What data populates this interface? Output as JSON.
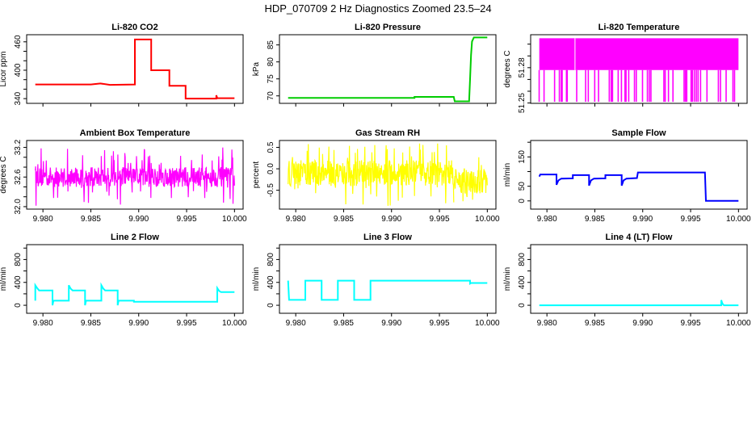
{
  "page_title": "HDP_070709  2 Hz Diagnostics Zoomed 23.5–24",
  "chart_data": [
    {
      "type": "line",
      "title": "Li-820 CO2",
      "ylabel": "Licor ppm",
      "color": "#ff0000",
      "xlim": [
        9.9783,
        10.0009
      ],
      "ylim": [
        330,
        475
      ],
      "xticks": [
        9.98,
        9.985,
        9.99,
        9.995,
        10.0
      ],
      "xtick_labels": [],
      "yticks": [
        340,
        360,
        380,
        400,
        420,
        440,
        460
      ],
      "ytick_labels": [
        "340",
        "",
        "",
        "400",
        "",
        "",
        "460"
      ],
      "points": [
        [
          9.9792,
          370
        ],
        [
          9.985,
          370
        ],
        [
          9.986,
          372
        ],
        [
          9.987,
          369
        ],
        [
          9.9896,
          370
        ],
        [
          9.9896,
          465
        ],
        [
          9.9913,
          465
        ],
        [
          9.9913,
          400
        ],
        [
          9.9932,
          400
        ],
        [
          9.9932,
          367
        ],
        [
          9.9949,
          367
        ],
        [
          9.9949,
          340
        ],
        [
          9.9981,
          340
        ],
        [
          9.9981,
          347
        ],
        [
          9.9982,
          341
        ],
        [
          10.0,
          341
        ]
      ]
    },
    {
      "type": "line",
      "title": "Li-820 Pressure",
      "ylabel": "kPa",
      "color": "#00cc00",
      "xlim": [
        9.9783,
        10.0009
      ],
      "ylim": [
        67.8,
        88.0
      ],
      "xticks": [
        9.98,
        9.985,
        9.99,
        9.995,
        10.0
      ],
      "xtick_labels": [],
      "yticks": [
        70,
        75,
        80,
        85
      ],
      "ytick_labels": [
        "70",
        "75",
        "80",
        "85"
      ],
      "points": [
        [
          9.9792,
          69.4
        ],
        [
          9.9924,
          69.4
        ],
        [
          9.9924,
          69.7
        ],
        [
          9.9965,
          69.7
        ],
        [
          9.9966,
          68.4
        ],
        [
          9.9981,
          68.4
        ],
        [
          9.9982,
          75
        ],
        [
          9.9983,
          82
        ],
        [
          9.9984,
          86
        ],
        [
          9.9986,
          87.2
        ],
        [
          10.0,
          87.2
        ]
      ]
    },
    {
      "type": "line",
      "title": "Li-820 Temperature",
      "ylabel": "degrees C",
      "color": "#ff00ff",
      "xlim": [
        9.9783,
        10.0009
      ],
      "ylim": [
        51.2497,
        51.308
      ],
      "xticks": [
        9.98,
        9.985,
        9.99,
        9.995,
        10.0
      ],
      "xtick_labels": [],
      "yticks": [
        51.25,
        51.26,
        51.27,
        51.28,
        51.29,
        51.3
      ],
      "ytick_labels": [
        "51.25",
        "",
        "",
        "51.28",
        "",
        ""
      ],
      "levels": {
        "high": 51.305,
        "mid": 51.278,
        "low": 51.251
      },
      "x_range": [
        9.9792,
        10.0
      ],
      "drops_to_low": [
        9.97918,
        9.97969,
        9.98079,
        9.98129,
        9.98149,
        9.98158,
        9.98203,
        9.98211,
        9.9831,
        9.98403,
        9.98431,
        9.98498,
        9.98538,
        9.9865,
        9.9867,
        9.98684,
        9.98743,
        9.98777,
        9.98814,
        9.98825,
        9.98853,
        9.98913,
        9.98932,
        9.98997,
        9.99048,
        9.99068,
        9.99085,
        9.9922,
        9.99234,
        9.99268,
        9.99315,
        9.99431,
        9.99445,
        9.99459,
        9.99504,
        9.99518,
        9.99538,
        9.99558,
        9.99577,
        9.99603,
        9.9967,
        9.99789,
        9.99811,
        9.9987,
        9.99941,
        9.99958
      ],
      "gap_x": 9.98293
    },
    {
      "type": "line",
      "title": "Ambient Box Temperature",
      "ylabel": "degrees C",
      "color": "#ff00ff",
      "xlim": [
        9.9783,
        10.0009
      ],
      "ylim": [
        31.95,
        33.34
      ],
      "xticks": [
        9.98,
        9.985,
        9.99,
        9.995,
        10.0
      ],
      "xtick_labels": [
        "9.980",
        "9.985",
        "9.990",
        "9.995",
        "10.000"
      ],
      "yticks": [
        32.0,
        32.2,
        32.4,
        32.6,
        32.8,
        33.0,
        33.2
      ],
      "ytick_labels": [
        "32.0",
        "",
        "",
        "32.6",
        "",
        "",
        "33.2"
      ],
      "noise_segments": [
        {
          "x": [
            9.9792,
            10.0
          ],
          "mean": 32.6,
          "range": [
            32.4,
            32.8
          ],
          "extremes": [
            32.0,
            33.2
          ]
        }
      ]
    },
    {
      "type": "line",
      "title": "Gas Stream RH",
      "ylabel": "percent",
      "color": "#ffff00",
      "xlim": [
        9.9783,
        10.0009
      ],
      "ylim": [
        -0.94,
        0.66
      ],
      "xticks": [
        9.98,
        9.985,
        9.99,
        9.995,
        10.0
      ],
      "xtick_labels": [
        "9.980",
        "9.985",
        "9.990",
        "9.995",
        "10.000"
      ],
      "yticks": [
        -1.0,
        -0.5,
        0.0,
        0.5
      ],
      "ytick_labels": [
        "",
        "-0.5",
        "0.0",
        "0.5"
      ],
      "noise_segments": [
        {
          "x": [
            9.9792,
            9.9965
          ],
          "mean": -0.1,
          "range": [
            -0.4,
            0.2
          ],
          "extremes": [
            -0.9,
            0.6
          ]
        },
        {
          "x": [
            9.9965,
            10.0
          ],
          "mean": -0.35,
          "range": [
            -0.6,
            0.0
          ],
          "extremes": [
            -0.8,
            0.4
          ]
        }
      ]
    },
    {
      "type": "line",
      "title": "Sample Flow",
      "ylabel": "ml/min",
      "color": "#0000ff",
      "xlim": [
        9.9783,
        10.0009
      ],
      "ylim": [
        -28,
        206
      ],
      "xticks": [
        9.98,
        9.985,
        9.99,
        9.995,
        10.0
      ],
      "xtick_labels": [
        "9.980",
        "9.985",
        "9.990",
        "9.995",
        "10.000"
      ],
      "yticks": [
        0,
        50,
        100,
        150,
        200
      ],
      "ytick_labels": [
        "0",
        "50",
        "",
        "150",
        ""
      ],
      "points": [
        [
          9.9792,
          83
        ],
        [
          9.9793,
          90
        ],
        [
          9.981,
          90
        ],
        [
          9.981,
          55
        ],
        [
          9.9812,
          70
        ],
        [
          9.9815,
          76
        ],
        [
          9.9827,
          77
        ],
        [
          9.9827,
          88
        ],
        [
          9.9844,
          88
        ],
        [
          9.9844,
          52
        ],
        [
          9.9846,
          70
        ],
        [
          9.9849,
          76
        ],
        [
          9.9861,
          77
        ],
        [
          9.9861,
          88
        ],
        [
          9.9878,
          88
        ],
        [
          9.9878,
          52
        ],
        [
          9.988,
          70
        ],
        [
          9.9883,
          76
        ],
        [
          9.9894,
          78
        ],
        [
          9.9895,
          97
        ],
        [
          9.9965,
          97
        ],
        [
          9.9966,
          0
        ],
        [
          10.0,
          0
        ]
      ]
    },
    {
      "type": "line",
      "title": "Line 2 Flow",
      "ylabel": "ml/min",
      "color": "#00ffff",
      "xlim": [
        9.9783,
        10.0009
      ],
      "ylim": [
        -140,
        1060
      ],
      "xticks": [
        9.98,
        9.985,
        9.99,
        9.995,
        10.0
      ],
      "xtick_labels": [
        "9.980",
        "9.985",
        "9.990",
        "9.995",
        "10.000"
      ],
      "yticks": [
        0,
        200,
        400,
        600,
        800,
        1000
      ],
      "ytick_labels": [
        "0",
        "",
        "400",
        "",
        "800",
        ""
      ],
      "points": [
        [
          9.9792,
          80
        ],
        [
          9.9792,
          350
        ],
        [
          9.9794,
          300
        ],
        [
          9.9796,
          260
        ],
        [
          9.981,
          260
        ],
        [
          9.981,
          0
        ],
        [
          9.9811,
          80
        ],
        [
          9.9827,
          80
        ],
        [
          9.9827,
          350
        ],
        [
          9.9829,
          290
        ],
        [
          9.9831,
          260
        ],
        [
          9.9844,
          260
        ],
        [
          9.9844,
          0
        ],
        [
          9.9845,
          80
        ],
        [
          9.9861,
          80
        ],
        [
          9.9861,
          350
        ],
        [
          9.9863,
          290
        ],
        [
          9.9865,
          260
        ],
        [
          9.9878,
          260
        ],
        [
          9.9878,
          0
        ],
        [
          9.9879,
          80
        ],
        [
          9.9895,
          80
        ],
        [
          9.9895,
          60
        ],
        [
          9.9982,
          60
        ],
        [
          9.9982,
          300
        ],
        [
          9.9984,
          250
        ],
        [
          9.9986,
          230
        ],
        [
          10.0,
          230
        ]
      ]
    },
    {
      "type": "line",
      "title": "Line 3 Flow",
      "ylabel": "ml/min",
      "color": "#00ffff",
      "xlim": [
        9.9783,
        10.0009
      ],
      "ylim": [
        -140,
        1060
      ],
      "xticks": [
        9.98,
        9.985,
        9.99,
        9.995,
        10.0
      ],
      "xtick_labels": [
        "9.980",
        "9.985",
        "9.990",
        "9.995",
        "10.000"
      ],
      "yticks": [
        0,
        200,
        400,
        600,
        800,
        1000
      ],
      "ytick_labels": [
        "0",
        "",
        "400",
        "",
        "800",
        ""
      ],
      "points": [
        [
          9.9792,
          430
        ],
        [
          9.9793,
          95
        ],
        [
          9.981,
          95
        ],
        [
          9.981,
          430
        ],
        [
          9.9827,
          430
        ],
        [
          9.9827,
          95
        ],
        [
          9.9844,
          95
        ],
        [
          9.9844,
          430
        ],
        [
          9.9861,
          430
        ],
        [
          9.9861,
          95
        ],
        [
          9.9878,
          95
        ],
        [
          9.9878,
          430
        ],
        [
          9.9982,
          430
        ],
        [
          9.9982,
          380
        ],
        [
          9.9983,
          390
        ],
        [
          10.0,
          390
        ]
      ]
    },
    {
      "type": "line",
      "title": "Line 4 (LT) Flow",
      "ylabel": "ml/min",
      "color": "#00ffff",
      "xlim": [
        9.9783,
        10.0009
      ],
      "ylim": [
        -140,
        1060
      ],
      "xticks": [
        9.98,
        9.985,
        9.99,
        9.995,
        10.0
      ],
      "xtick_labels": [
        "9.980",
        "9.985",
        "9.990",
        "9.995",
        "10.000"
      ],
      "yticks": [
        0,
        200,
        400,
        600,
        800,
        1000
      ],
      "ytick_labels": [
        "0",
        "",
        "400",
        "",
        "800",
        ""
      ],
      "points": [
        [
          9.9792,
          0
        ],
        [
          9.9982,
          0
        ],
        [
          9.9982,
          90
        ],
        [
          9.9983,
          40
        ],
        [
          9.9984,
          10
        ],
        [
          9.9985,
          0
        ],
        [
          10.0,
          0
        ]
      ]
    }
  ]
}
